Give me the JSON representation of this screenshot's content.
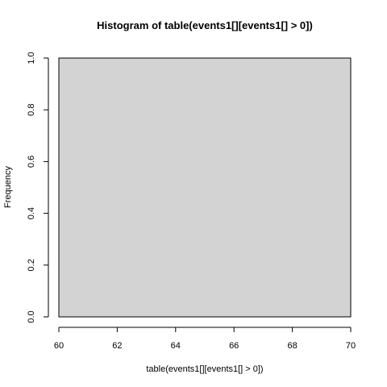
{
  "chart_data": {
    "type": "bar",
    "title": "Histogram of table(events1[][events1[] > 0])",
    "xlabel": "table(events1[][events1[] > 0])",
    "ylabel": "Frequency",
    "xlim": [
      60,
      70
    ],
    "ylim": [
      0,
      1.0
    ],
    "x_ticks": [
      "60",
      "62",
      "64",
      "66",
      "68",
      "70"
    ],
    "y_ticks": [
      "0.0",
      "0.2",
      "0.4",
      "0.6",
      "0.8",
      "1.0"
    ],
    "bins": [
      {
        "start": 60,
        "end": 70,
        "count": 1
      }
    ],
    "bar_color": "#d3d3d3",
    "grid": false,
    "legend": "none"
  }
}
